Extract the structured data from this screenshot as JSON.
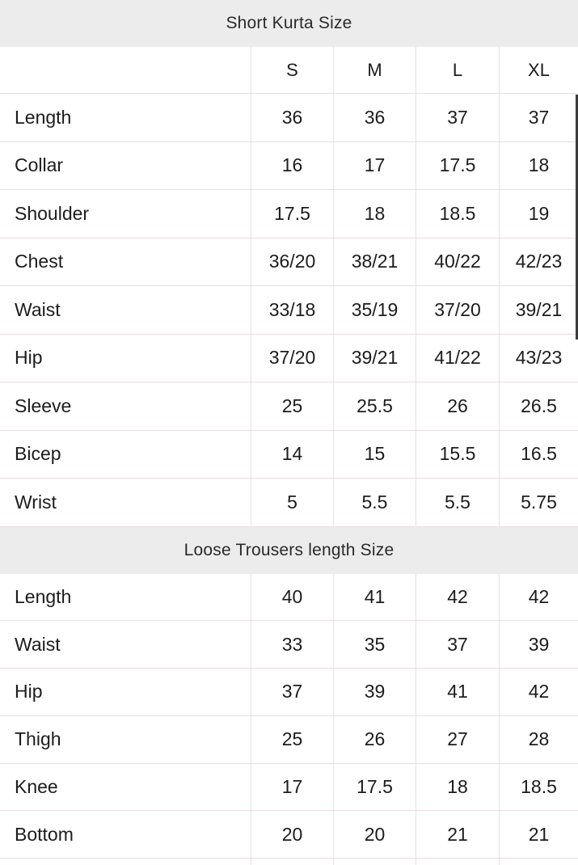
{
  "colors": {
    "band_bg": "#ececec",
    "band_text": "#2a2a2a",
    "text_color": "#1c1c1c",
    "row_border": "#ecdcdc",
    "col_border": "#e4e4e4",
    "scrollbar_color": "#3d3d3d"
  },
  "sections": [
    {
      "title": "Short Kurta Size",
      "columns": [
        "S",
        "M",
        "L",
        "XL"
      ],
      "rows": [
        {
          "label": "Length",
          "values": [
            "36",
            "36",
            "37",
            "37"
          ]
        },
        {
          "label": "Collar",
          "values": [
            "16",
            "17",
            "17.5",
            "18"
          ]
        },
        {
          "label": "Shoulder",
          "values": [
            "17.5",
            "18",
            "18.5",
            "19"
          ]
        },
        {
          "label": "Chest",
          "values": [
            "36/20",
            "38/21",
            "40/22",
            "42/23"
          ]
        },
        {
          "label": "Waist",
          "values": [
            "33/18",
            "35/19",
            "37/20",
            "39/21"
          ]
        },
        {
          "label": "Hip",
          "values": [
            "37/20",
            "39/21",
            "41/22",
            "43/23"
          ]
        },
        {
          "label": "Sleeve",
          "values": [
            "25",
            "25.5",
            "26",
            "26.5"
          ]
        },
        {
          "label": "Bicep",
          "values": [
            "14",
            "15",
            "15.5",
            "16.5"
          ]
        },
        {
          "label": "Wrist",
          "values": [
            "5",
            "5.5",
            "5.5",
            "5.75"
          ]
        }
      ]
    },
    {
      "title": "Loose Trousers length Size",
      "rows": [
        {
          "label": "Length",
          "values": [
            "40",
            "41",
            "42",
            "42"
          ]
        },
        {
          "label": "Waist",
          "values": [
            "33",
            "35",
            "37",
            "39"
          ]
        },
        {
          "label": "Hip",
          "values": [
            "37",
            "39",
            "41",
            "42"
          ]
        },
        {
          "label": "Thigh",
          "values": [
            "25",
            "26",
            "27",
            "28"
          ]
        },
        {
          "label": "Knee",
          "values": [
            "17",
            "17.5",
            "18",
            "18.5"
          ]
        },
        {
          "label": "Bottom",
          "values": [
            "20",
            "20",
            "21",
            "21"
          ]
        }
      ]
    }
  ]
}
